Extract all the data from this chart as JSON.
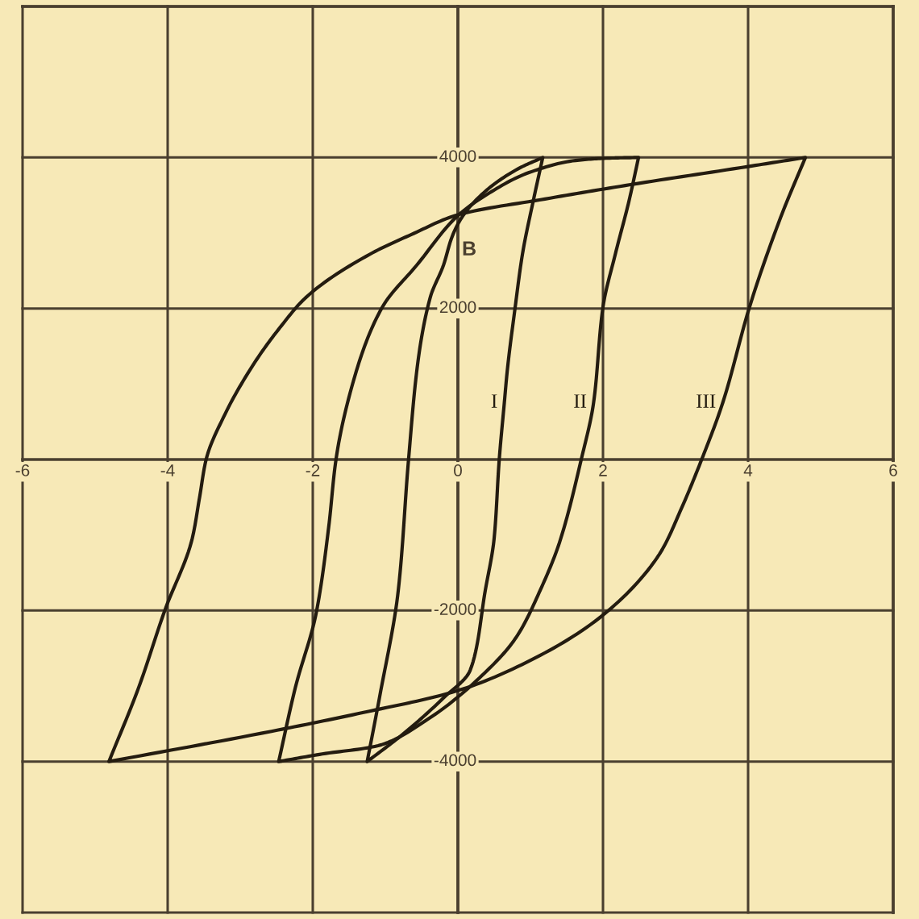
{
  "chart_data": {
    "type": "line",
    "ylabel": "B",
    "xlim": [
      -6,
      6
    ],
    "ylim": [
      -6000,
      6000
    ],
    "xticks": [
      -6,
      -4,
      -2,
      0,
      2,
      4,
      6
    ],
    "yticks": [
      {
        "value": -6000,
        "label": null
      },
      {
        "value": -4000,
        "label": "-4000"
      },
      {
        "value": -2000,
        "label": "-2000"
      },
      {
        "value": 2000,
        "label": "2000"
      },
      {
        "value": 4000,
        "label": "4000"
      },
      {
        "value": 6000,
        "label": null
      }
    ],
    "grid": true,
    "series": [
      {
        "name": "I",
        "color": "#241c10",
        "x": [
          -1.25,
          -1.08,
          -0.82,
          -0.68,
          -0.55,
          -0.38,
          -0.2,
          -0.08,
          0.05,
          0.4,
          0.83,
          1.17,
          null,
          -1.25,
          -0.76,
          -0.19,
          0.17,
          0.38,
          0.5,
          0.57,
          0.64,
          0.68,
          0.79,
          0.89,
          1.04,
          1.17
        ],
        "values": [
          -4000,
          -3150,
          -1720,
          0,
          1300,
          2150,
          2570,
          2950,
          3200,
          3570,
          3850,
          4000,
          null,
          -4000,
          -3640,
          -3150,
          -2790,
          -1720,
          -1040,
          0,
          750,
          1170,
          2020,
          2720,
          3430,
          4000
        ]
      },
      {
        "name": "II",
        "color": "#241c10",
        "x": [
          -2.47,
          -2.24,
          -1.95,
          -1.78,
          -1.68,
          -1.4,
          -1.04,
          -0.57,
          0.0,
          0.4,
          0.98,
          1.62,
          2.04,
          2.49,
          null,
          -2.47,
          -1.87,
          -1.1,
          -0.4,
          0.3,
          0.8,
          1.14,
          1.4,
          1.7,
          1.87,
          2.0,
          2.17,
          2.36,
          2.49
        ],
        "values": [
          -4000,
          -3020,
          -2020,
          -890,
          0,
          1170,
          2020,
          2570,
          3230,
          3510,
          3800,
          3960,
          3990,
          4000,
          null,
          -4000,
          -3900,
          -3790,
          -3430,
          -2890,
          -2360,
          -1720,
          -1100,
          0,
          750,
          2020,
          2720,
          3430,
          4000
        ]
      },
      {
        "name": "III",
        "color": "#241c10",
        "x": [
          -4.81,
          -4.4,
          -4.04,
          -3.66,
          -3.56,
          -3.47,
          -3.21,
          -2.79,
          -2.45,
          -2.09,
          -1.21,
          -0.64,
          0.0,
          1.2,
          2.38,
          4.0,
          4.79,
          null,
          -4.81,
          -2.57,
          -1.3,
          0.0,
          1.0,
          2.0,
          2.78,
          3.08,
          3.36,
          3.65,
          4.02,
          4.45,
          4.79
        ],
        "values": [
          -4000,
          -3020,
          -2000,
          -1040,
          -500,
          0,
          600,
          1300,
          1750,
          2150,
          2720,
          2980,
          3240,
          3450,
          3640,
          3880,
          4000,
          null,
          -4000,
          -3600,
          -3350,
          -3060,
          -2660,
          -2060,
          -1250,
          -650,
          0,
          750,
          2020,
          3210,
          4000
        ]
      }
    ]
  }
}
